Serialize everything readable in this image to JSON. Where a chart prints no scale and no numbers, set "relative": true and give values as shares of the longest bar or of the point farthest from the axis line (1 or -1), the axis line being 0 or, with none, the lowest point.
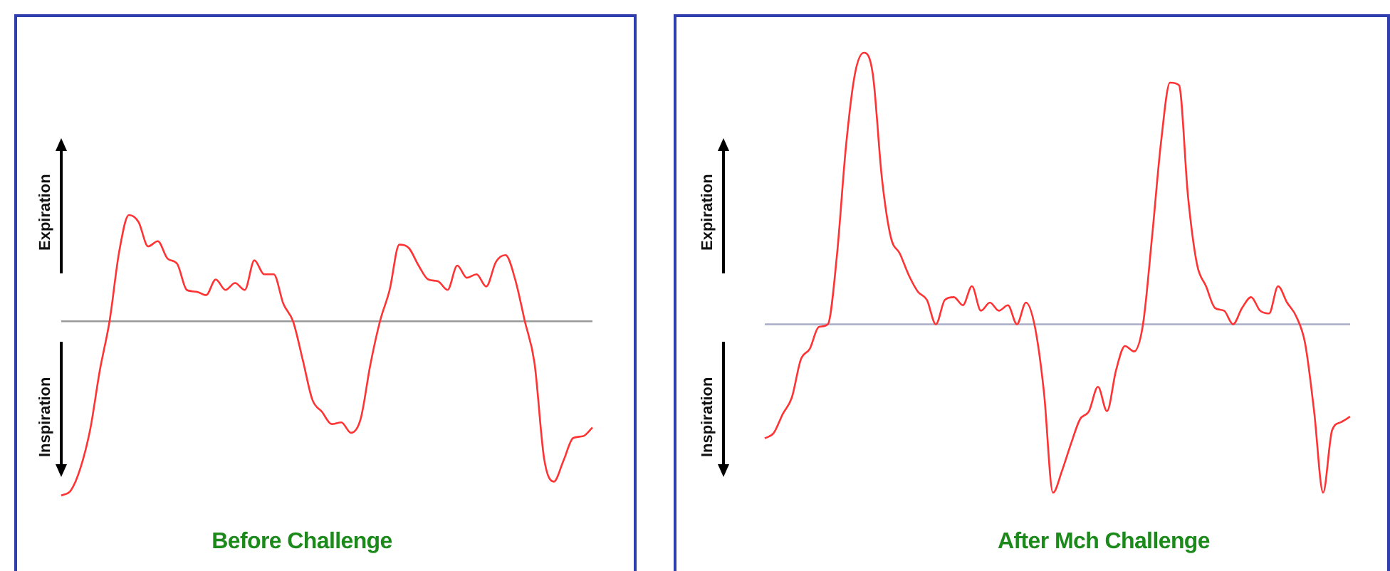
{
  "chart_data": [
    {
      "type": "line",
      "title": "Before Challenge",
      "relative": true,
      "annotations": [
        "Expiration",
        "Inspiration"
      ],
      "categories": [
        null,
        null,
        null,
        null,
        null,
        null,
        null,
        null,
        null,
        null,
        null,
        null,
        null,
        null,
        null,
        null,
        null,
        null,
        null,
        null,
        null,
        null,
        null,
        null,
        null,
        null,
        null,
        null,
        null,
        null,
        null,
        null,
        null,
        null,
        null,
        null,
        null,
        null,
        null,
        null,
        null,
        null,
        null,
        null,
        null,
        null,
        null,
        null,
        null,
        null,
        null,
        null,
        null,
        null,
        null,
        null
      ],
      "series": [
        {
          "color": "#ff3333",
          "values": [
            -1,
            -0.97,
            -0.84,
            -0.62,
            -0.28,
            0,
            0.4,
            0.61,
            0.57,
            0.43,
            0.46,
            0.36,
            0.33,
            0.18,
            0.17,
            0.15,
            0.24,
            0.18,
            0.22,
            0.18,
            0.35,
            0.27,
            0.27,
            0.1,
            0,
            -0.22,
            -0.45,
            -0.52,
            -0.59,
            -0.58,
            -0.64,
            -0.56,
            -0.25,
            0,
            0.18,
            0.44,
            0.42,
            0.32,
            0.24,
            0.23,
            0.18,
            0.32,
            0.25,
            0.27,
            0.2,
            0.34,
            0.38,
            0.24,
            0,
            -0.24,
            -0.79,
            -0.92,
            -0.8,
            -0.67,
            -0.66,
            -0.61
          ]
        }
      ]
    },
    {
      "type": "line",
      "title": "After Mch Challenge",
      "relative": true,
      "annotations": [
        "Expiration",
        "Inspiration"
      ],
      "categories": [
        null,
        null,
        null,
        null,
        null,
        null,
        null,
        null,
        null,
        null,
        null,
        null,
        null,
        null,
        null,
        null,
        null,
        null,
        null,
        null,
        null,
        null,
        null,
        null,
        null,
        null,
        null,
        null,
        null,
        null,
        null,
        null,
        null,
        null,
        null,
        null,
        null,
        null,
        null,
        null,
        null,
        null,
        null,
        null,
        null,
        null,
        null,
        null,
        null,
        null,
        null,
        null,
        null,
        null,
        null,
        null,
        null,
        null,
        null,
        null,
        null,
        null,
        null,
        null,
        null,
        null
      ],
      "series": [
        {
          "color": "#ff3333",
          "values": [
            -0.42,
            -0.4,
            -0.33,
            -0.27,
            -0.13,
            -0.09,
            -0.01,
            0,
            0.25,
            0.65,
            0.92,
            1,
            0.92,
            0.54,
            0.32,
            0.26,
            0.18,
            0.12,
            0.09,
            0,
            0.09,
            0.1,
            0.07,
            0.14,
            0.05,
            0.08,
            0.05,
            0.07,
            0,
            0.08,
            -0.01,
            -0.25,
            -0.62,
            -0.54,
            -0.44,
            -0.35,
            -0.32,
            -0.23,
            -0.32,
            -0.17,
            -0.08,
            -0.1,
            0,
            0.32,
            0.67,
            0.89,
            0.88,
            0.47,
            0.22,
            0.14,
            0.06,
            0.05,
            0,
            0.06,
            0.1,
            0.05,
            0.04,
            0.14,
            0.08,
            0.03,
            -0.07,
            -0.32,
            -0.62,
            -0.39,
            -0.36,
            -0.34
          ]
        }
      ]
    }
  ]
}
